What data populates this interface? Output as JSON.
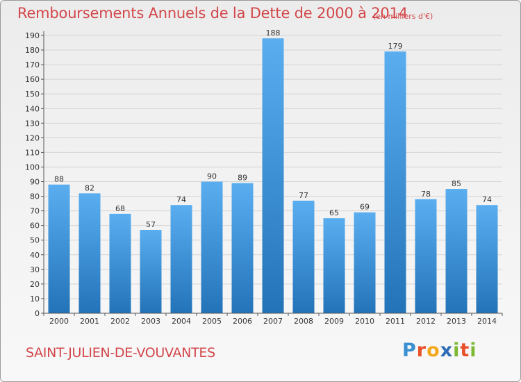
{
  "page": {
    "title": "Remboursements Annuels de la Dette de 2000 à 2014",
    "unit": "(en milliers d'€)",
    "commune": "SAINT-JULIEN-DE-VOUVANTES",
    "logo": {
      "text": "Proxiti",
      "letters": [
        {
          "ch": "P",
          "color": "#3a8fd1"
        },
        {
          "ch": "r",
          "color": "#e8502a"
        },
        {
          "ch": "o",
          "color": "#f2a81d"
        },
        {
          "ch": "x",
          "color": "#2e6db5"
        },
        {
          "ch": "i",
          "color": "#7cb832"
        },
        {
          "ch": "t",
          "color": "#e8502a"
        },
        {
          "ch": "i",
          "color": "#7cb832"
        }
      ]
    }
  },
  "chart_data": {
    "type": "bar",
    "title": "Remboursements Annuels de la Dette de 2000 à 2014",
    "unit": "(en milliers d'€)",
    "categories": [
      "2000",
      "2001",
      "2002",
      "2003",
      "2004",
      "2005",
      "2006",
      "2007",
      "2008",
      "2009",
      "2010",
      "2011",
      "2012",
      "2013",
      "2014"
    ],
    "values": [
      88,
      82,
      68,
      57,
      74,
      90,
      89,
      188,
      77,
      65,
      69,
      179,
      78,
      85,
      74
    ],
    "ylim": [
      0,
      190
    ],
    "ytick_step": 10,
    "grid": true,
    "legend": "none",
    "colors": {
      "bar_light": "#5aaef0",
      "bar_dark": "#2373b9",
      "grid": "#d4d4d4",
      "axis": "#555555",
      "text": "#333333"
    }
  }
}
